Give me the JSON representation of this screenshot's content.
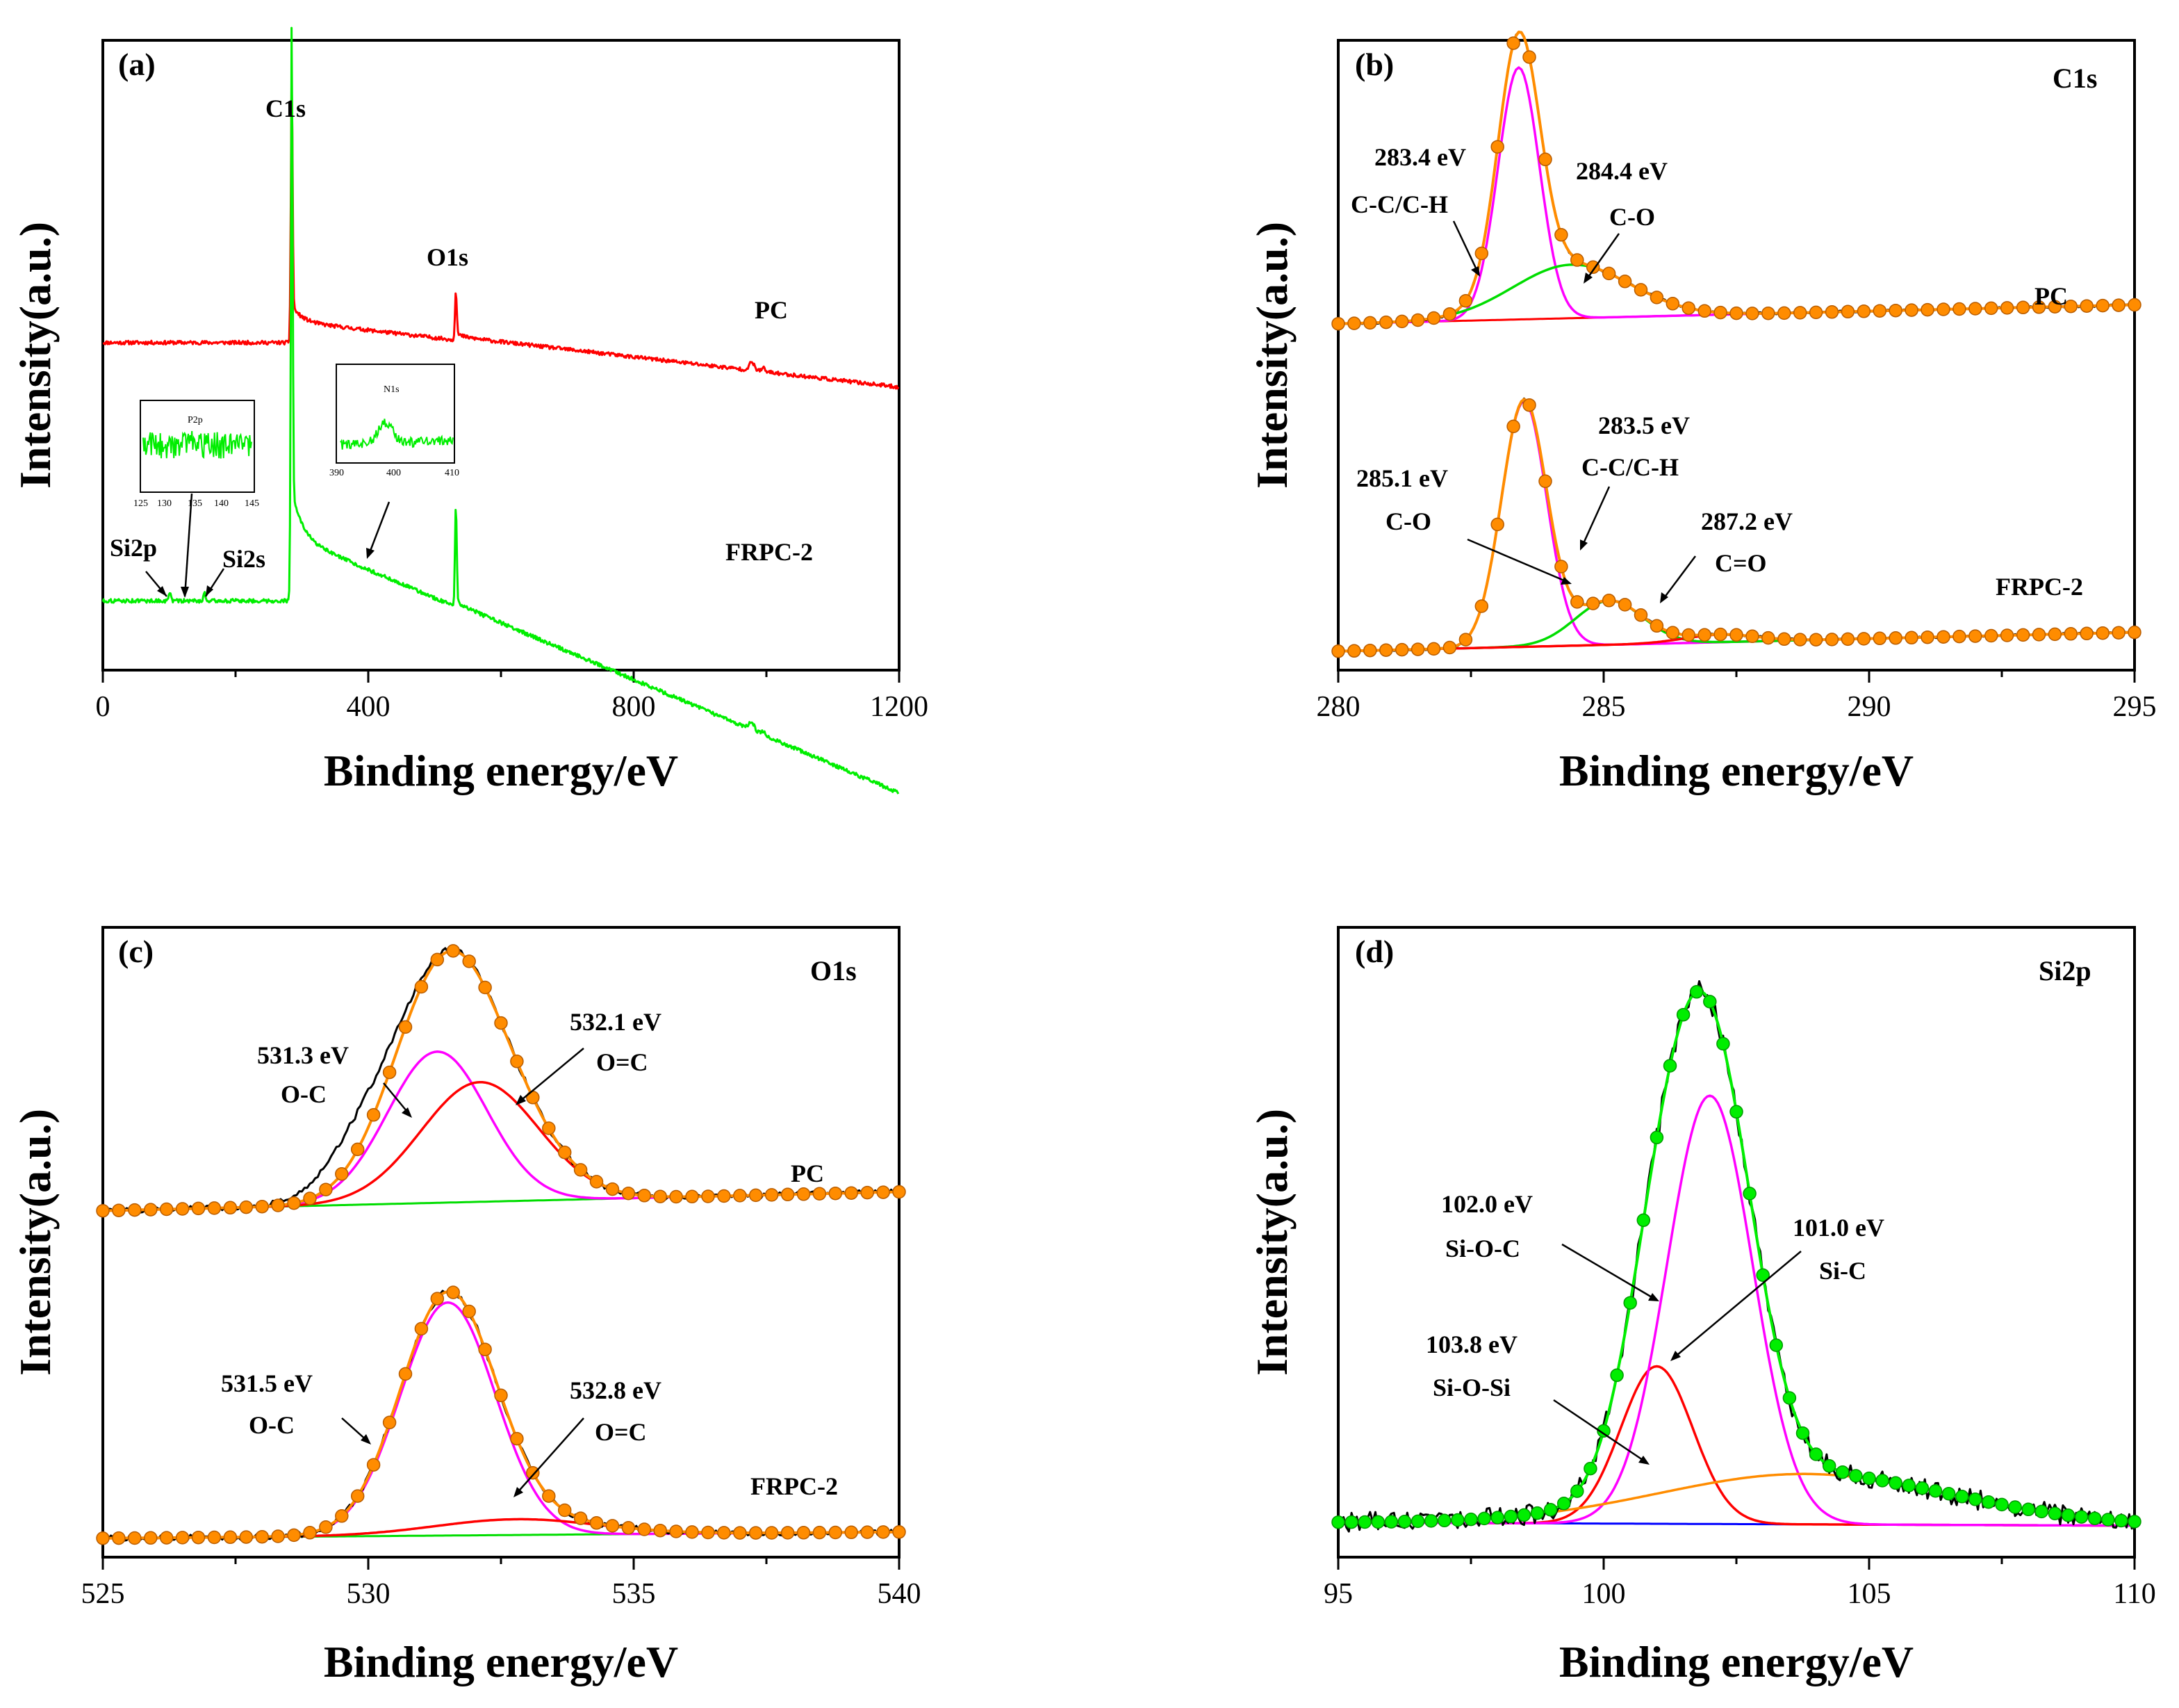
{
  "chart_data": [
    {
      "id": "a",
      "type": "line",
      "panel_label": "(a)",
      "xlabel": "Binding energy/eV",
      "ylabel": "Intensity(a.u.)",
      "xlim": [
        0,
        1200
      ],
      "ylim": [
        0,
        100
      ],
      "xticks": [
        0,
        400,
        800,
        1200
      ],
      "xtick_labels": [
        "0",
        "400",
        "800",
        "1200"
      ],
      "series": [
        {
          "name": "PC",
          "color": "#ff0000",
          "offset": 52,
          "peaks": [
            {
              "label": "C1s",
              "x": 284.6,
              "height": 37
            },
            {
              "label": "O1s",
              "x": 532,
              "height": 7
            }
          ],
          "steps": [
            {
              "x": 284,
              "height": 6
            },
            {
              "x": 531,
              "height": 1
            }
          ],
          "slope": -0.0012
        },
        {
          "name": "FRPC-2",
          "color": "#00ee00",
          "offset": 11,
          "peaks": [
            {
              "label": "C1s",
              "x": 284.6,
              "height": 74
            },
            {
              "label": "O1s",
              "x": 532,
              "height": 15
            },
            {
              "label": "Si2p",
              "x": 101,
              "height": 1.5
            },
            {
              "label": "Si2s",
              "x": 153,
              "height": 1.5
            }
          ],
          "steps": [
            {
              "x": 284,
              "height": 18
            },
            {
              "x": 531,
              "height": 1
            }
          ],
          "slope": -0.0045
        }
      ],
      "insets": [
        {
          "title": "P2p",
          "xticks": [
            "125",
            "130",
            "135",
            "140",
            "145"
          ],
          "color": "#00ee00"
        },
        {
          "title": "N1s",
          "xticks": [
            "390",
            "400",
            "410"
          ],
          "color": "#00ee00"
        }
      ],
      "annotations": [
        "C1s",
        "O1s",
        "PC",
        "FRPC-2",
        "Si2p",
        "Si2s"
      ]
    },
    {
      "id": "b",
      "type": "line",
      "panel_label": "(b)",
      "core_level": "C1s",
      "xlabel": "Binding energy/eV",
      "ylabel": "Intensity(a.u.)",
      "xlim": [
        280,
        295
      ],
      "ylim": [
        0,
        100
      ],
      "xticks": [
        280,
        285,
        290,
        295
      ],
      "xtick_labels": [
        "280",
        "285",
        "290",
        "295"
      ],
      "series_colors": {
        "raw": "#000000",
        "fit": "#ff8c00",
        "background": "#ff0000",
        "peak_main": "#ff00ff",
        "peak_2": "#00dd00",
        "peak_3": "#ff0000"
      },
      "spectra": [
        {
          "name": "PC",
          "baseline": 55,
          "background": {
            "start": 0,
            "end": 3
          },
          "components": [
            {
              "center": 283.4,
              "fwhm": 0.92,
              "height": 40,
              "color": "#ff00ff",
              "label": "283.4 eV",
              "label2": "C-C/C-H"
            },
            {
              "center": 284.4,
              "fwhm": 2.6,
              "height": 8.5,
              "color": "#00dd00",
              "label": "284.4 eV",
              "label2": "C-O"
            }
          ]
        },
        {
          "name": "FRPC-2",
          "baseline": 3,
          "background": {
            "start": 0,
            "end": 3
          },
          "components": [
            {
              "center": 283.5,
              "fwhm": 1.0,
              "height": 39,
              "color": "#ff00ff",
              "label": "283.5 eV",
              "label2": "C-C/C-H"
            },
            {
              "center": 285.1,
              "fwhm": 1.5,
              "height": 7,
              "color": "#00dd00",
              "label": "285.1 eV",
              "label2": "C-O"
            },
            {
              "center": 287.2,
              "fwhm": 1.6,
              "height": 1.2,
              "color": "#ff0000",
              "label": "287.2 eV",
              "label2": "C=O"
            }
          ]
        }
      ],
      "annotations": [
        "C1s",
        "283.4 eV",
        "C-C/C-H",
        "284.4 eV",
        "C-O",
        "PC",
        "283.5 eV",
        "C-C/C-H",
        "285.1 eV",
        "C-O",
        "287.2 eV",
        "C=O",
        "FRPC-2"
      ]
    },
    {
      "id": "c",
      "type": "line",
      "panel_label": "(c)",
      "core_level": "O1s",
      "xlabel": "Binding energy/eV",
      "ylabel": "Intensity(a.u.)",
      "xlim": [
        525,
        540
      ],
      "ylim": [
        0,
        100
      ],
      "xticks": [
        525,
        530,
        535,
        540
      ],
      "xtick_labels": [
        "525",
        "530",
        "535",
        "540"
      ],
      "series_colors": {
        "raw": "#000000",
        "fit": "#ff8c00",
        "background": "#00dd00",
        "peak_oc": "#ff00ff",
        "peak_oeqc": "#ff0000"
      },
      "spectra": [
        {
          "name": "PC",
          "baseline": 55,
          "background": {
            "start": 0,
            "end": 3
          },
          "components": [
            {
              "center": 531.3,
              "fwhm": 2.2,
              "height": 24,
              "color": "#ff00ff",
              "label": "531.3 eV",
              "label2": "O-C"
            },
            {
              "center": 532.1,
              "fwhm": 2.6,
              "height": 19,
              "color": "#ff0000",
              "label": "532.1 eV",
              "label2": "O=C"
            }
          ]
        },
        {
          "name": "FRPC-2",
          "baseline": 3,
          "background": {
            "start": 0,
            "end": 1
          },
          "components": [
            {
              "center": 531.5,
              "fwhm": 2.1,
              "height": 37,
              "color": "#ff00ff",
              "label": "531.5 eV",
              "label2": "O-C"
            },
            {
              "center": 532.8,
              "fwhm": 3.6,
              "height": 2.5,
              "color": "#ff0000",
              "label": "532.8 eV",
              "label2": "O=C"
            }
          ]
        }
      ],
      "annotations": [
        "O1s",
        "531.3 eV",
        "O-C",
        "532.1 eV",
        "O=C",
        "PC",
        "531.5 eV",
        "O-C",
        "532.8 eV",
        "O=C",
        "FRPC-2"
      ]
    },
    {
      "id": "d",
      "type": "line",
      "panel_label": "(d)",
      "core_level": "Si2p",
      "xlabel": "Binding energy/eV",
      "ylabel": "Intensity(a.u.)",
      "xlim": [
        95,
        110
      ],
      "ylim": [
        0,
        100
      ],
      "xticks": [
        95,
        100,
        105,
        110
      ],
      "xtick_labels": [
        "95",
        "100",
        "105",
        "110"
      ],
      "series_colors": {
        "raw": "#000000",
        "fit": "#00ee00",
        "background": "#0000ff",
        "peak_sic": "#ff0000",
        "peak_sioc": "#ff00ff",
        "peak_siosi": "#ff8c00"
      },
      "spectra": [
        {
          "name": "FRPC-2",
          "baseline": 5,
          "background": {
            "start": 0.5,
            "end": 0
          },
          "components": [
            {
              "center": 101.0,
              "fwhm": 1.6,
              "height": 25,
              "color": "#ff0000",
              "label": "101.0 eV",
              "label2": "Si-C"
            },
            {
              "center": 102.0,
              "fwhm": 1.9,
              "height": 68,
              "color": "#ff00ff",
              "label": "102.0 eV",
              "label2": "Si-O-C"
            },
            {
              "center": 103.8,
              "fwhm": 6.5,
              "height": 8,
              "color": "#ff8c00",
              "label": "103.8 eV",
              "label2": "Si-O-Si"
            }
          ]
        }
      ],
      "annotations": [
        "Si2p",
        "102.0 eV",
        "Si-O-C",
        "101.0 eV",
        "Si-C",
        "103.8 eV",
        "Si-O-Si"
      ]
    }
  ]
}
